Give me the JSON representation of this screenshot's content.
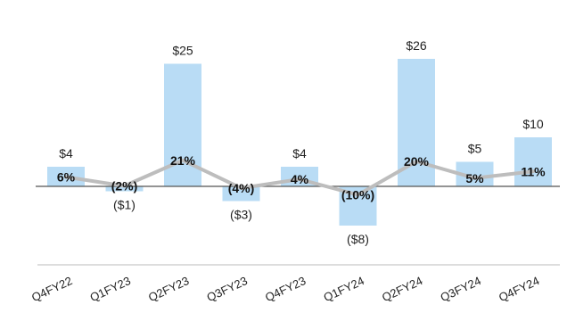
{
  "chart_data": {
    "type": "bar",
    "title": "",
    "xlabel": "",
    "ylabel": "",
    "categories": [
      "Q4FY22",
      "Q1FY23",
      "Q2FY23",
      "Q3FY23",
      "Q4FY23",
      "Q1FY24",
      "Q2FY24",
      "Q3FY24",
      "Q4FY24"
    ],
    "values": [
      4,
      -1,
      25,
      -3,
      4,
      -8,
      26,
      5,
      10
    ],
    "value_labels": [
      "$4",
      "($1)",
      "$25",
      "($3)",
      "$4",
      "($8)",
      "$26",
      "$5",
      "$10"
    ],
    "line_series": {
      "type": "line",
      "values": [
        6,
        -2,
        21,
        -4,
        4,
        -10,
        20,
        5,
        11
      ],
      "labels": [
        "6%",
        "(2%)",
        "21%",
        "(4%)",
        "4%",
        "(10%)",
        "20%",
        "5%",
        "11%"
      ]
    },
    "ylim": [
      -12,
      30
    ],
    "grid": false,
    "legend": "none",
    "colors": {
      "bar": "#b9dcf5",
      "line": "#bdbdbd",
      "baseline": "#555555",
      "axis": "#bbbbbb"
    }
  }
}
